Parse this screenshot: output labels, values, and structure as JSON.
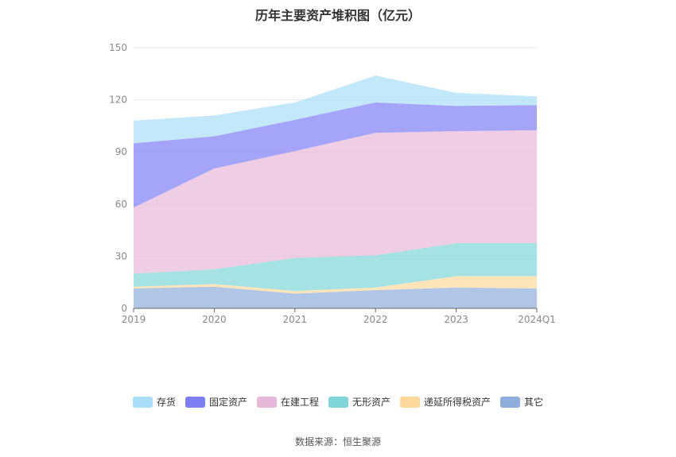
{
  "title": "历年主要资产堆积图（亿元）",
  "source": "数据来源：恒生聚源",
  "chart_data": {
    "type": "area",
    "stacked": true,
    "title": "历年主要资产堆积图（亿元）",
    "x": [
      "2019",
      "2020",
      "2021",
      "2022",
      "2023",
      "2024Q1"
    ],
    "ylim": [
      0,
      150
    ],
    "yticks": [
      0,
      30,
      60,
      90,
      120,
      150
    ],
    "grid": true,
    "legend_position": "bottom",
    "series": [
      {
        "name": "其它",
        "color": "#8eaedb",
        "values": [
          11.5,
          12.5,
          8.5,
          10.5,
          12,
          11.5
        ]
      },
      {
        "name": "递延所得税资产",
        "color": "#fdd89b",
        "values": [
          1,
          1.5,
          1.5,
          1.5,
          6.5,
          7
        ]
      },
      {
        "name": "无形资产",
        "color": "#7fd6d8",
        "values": [
          7.5,
          8.5,
          19,
          18.5,
          19,
          19
        ]
      },
      {
        "name": "在建工程",
        "color": "#e8b8da",
        "values": [
          38,
          58,
          61.5,
          70.5,
          64.5,
          65
        ]
      },
      {
        "name": "固定资产",
        "color": "#7e7ff5",
        "values": [
          37,
          18.5,
          18,
          17.5,
          14.5,
          14.5
        ]
      },
      {
        "name": "存货",
        "color": "#a9def8",
        "values": [
          13,
          12,
          10,
          15.5,
          7.5,
          5
        ]
      }
    ]
  },
  "legend_order": [
    "存货",
    "固定资产",
    "在建工程",
    "无形资产",
    "递延所得税资产",
    "其它"
  ]
}
